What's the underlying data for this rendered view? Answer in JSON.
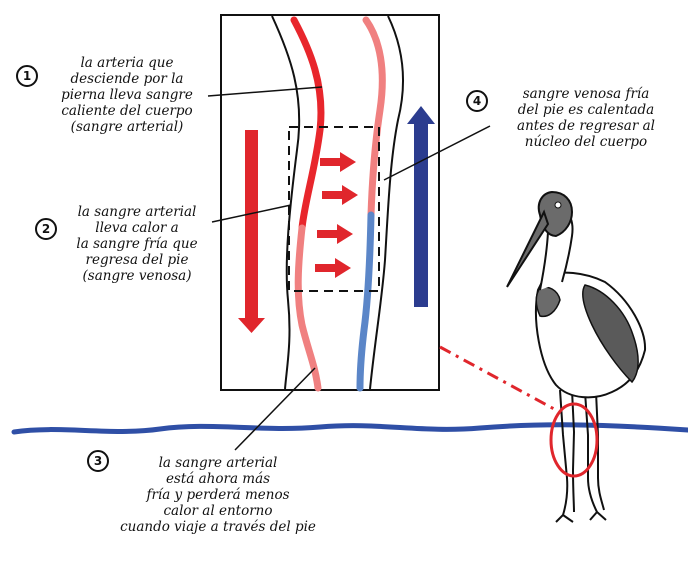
{
  "labels": {
    "n1": "1",
    "l1": [
      "la arteria que",
      "desciende por la",
      "pierna lleva sangre",
      "caliente del cuerpo",
      "(sangre arterial)"
    ],
    "n2": "2",
    "l2": [
      "la sangre arterial",
      "lleva calor a",
      "la sangre fría que",
      "regresa del pie",
      "(sangre venosa)"
    ],
    "n3": "3",
    "l3": [
      "la sangre arterial",
      "está ahora más",
      "fría y perderá menos",
      "calor al entorno",
      "cuando viaje a través del pie"
    ],
    "n4": "4",
    "l4": [
      "sangre venosa fría",
      "del pie es calentada",
      "antes de regresar al",
      "núcleo del cuerpo"
    ]
  },
  "colors": {
    "artery_warm": "#e8262c",
    "artery_cool": "#f08080",
    "vein_cold": "#5b86c8",
    "vein_warm": "#f08080",
    "down_arrow": "#e0262c",
    "up_arrow": "#2b3c8f",
    "water": "#2f4fa6",
    "highlight": "#e0262c",
    "bird_dark": "#6b6b6b",
    "bird_wing": "#5a5a5a"
  }
}
